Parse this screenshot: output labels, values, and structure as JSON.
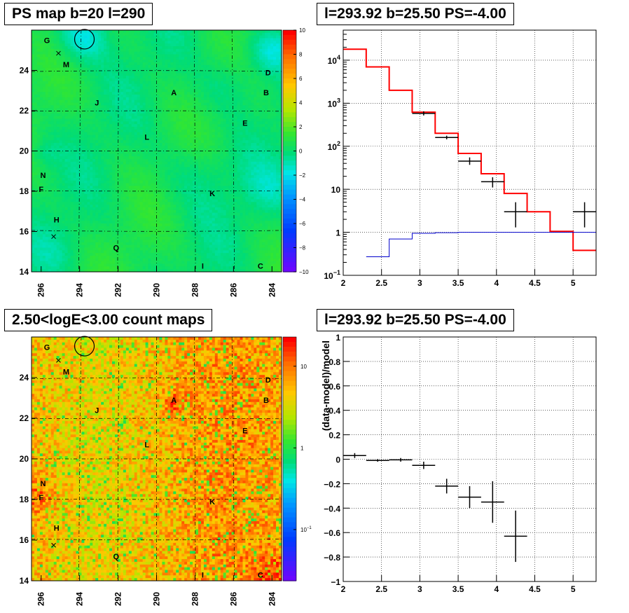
{
  "titles": {
    "map_top": "PS map b=20 l=290",
    "spec_top": "l=293.92 b=25.50 PS=-4.00",
    "map_bottom": "2.50<logE<3.00 count maps",
    "resid_bottom": "l=293.92 b=25.50 PS=-4.00"
  },
  "maps": {
    "x_ticks": [
      "296",
      "294",
      "292",
      "290",
      "288",
      "286",
      "284"
    ],
    "y_ticks": [
      "14",
      "16",
      "18",
      "20",
      "22",
      "24"
    ],
    "sources": [
      "G",
      "M",
      "J",
      "A",
      "D",
      "B",
      "E",
      "L",
      "N",
      "F",
      "K",
      "H",
      "Q",
      "I",
      "C"
    ],
    "ps_colorbar_ticks": [
      "10",
      "8",
      "6",
      "4",
      "2",
      "0",
      "-2",
      "-4",
      "-6",
      "-8",
      "-10"
    ],
    "count_colorbar_ticks": [
      "10",
      "1",
      "10^-1"
    ]
  },
  "chart_data": [
    {
      "type": "heatmap",
      "title": "PS map b=20 l=290",
      "xlim": [
        296.5,
        283.5
      ],
      "ylim": [
        14,
        26
      ],
      "zlim": [
        -10,
        10
      ],
      "colorbar": [
        "10",
        "8",
        "6",
        "4",
        "2",
        "0",
        "-2",
        "-4",
        "-6",
        "-8",
        "-10"
      ],
      "markers": [
        {
          "label": "G",
          "l": 295.7,
          "b": 25.5
        },
        {
          "label": "M",
          "l": 294.7,
          "b": 24.3
        },
        {
          "label": "J",
          "l": 293.1,
          "b": 22.4
        },
        {
          "label": "A",
          "l": 289.1,
          "b": 22.9
        },
        {
          "label": "D",
          "l": 284.2,
          "b": 23.9
        },
        {
          "label": "B",
          "l": 284.3,
          "b": 22.9
        },
        {
          "label": "E",
          "l": 285.4,
          "b": 21.4
        },
        {
          "label": "L",
          "l": 290.5,
          "b": 20.7
        },
        {
          "label": "N",
          "l": 295.9,
          "b": 18.8
        },
        {
          "label": "F",
          "l": 296.0,
          "b": 18.1
        },
        {
          "label": "K",
          "l": 287.1,
          "b": 17.9
        },
        {
          "label": "H",
          "l": 295.2,
          "b": 16.6
        },
        {
          "label": "Q",
          "l": 292.1,
          "b": 15.2
        },
        {
          "label": "I",
          "l": 287.6,
          "b": 14.3
        },
        {
          "label": "C",
          "l": 284.6,
          "b": 14.3
        }
      ]
    },
    {
      "type": "line",
      "title": "l=293.92 b=25.50 PS=-4.00",
      "xlabel": "",
      "ylabel": "",
      "xlim": [
        2,
        5.3
      ],
      "ylim": [
        0.1,
        50000
      ],
      "yscale": "log",
      "x_ticks": [
        "2",
        "2.5",
        "3",
        "3.5",
        "4",
        "4.5",
        "5"
      ],
      "y_ticks": [
        "10^-1",
        "1",
        "10",
        "10^2",
        "10^3",
        "10^4"
      ],
      "grid": true,
      "series": [
        {
          "color": "#ff0000",
          "steps": [
            [
              2.0,
              2.3,
              18000
            ],
            [
              2.3,
              2.6,
              7000
            ],
            [
              2.6,
              2.9,
              2000
            ],
            [
              2.9,
              3.2,
              620
            ],
            [
              3.2,
              3.5,
              200
            ],
            [
              3.5,
              3.8,
              68
            ],
            [
              3.8,
              4.1,
              23
            ],
            [
              4.1,
              4.4,
              8
            ],
            [
              4.4,
              4.7,
              3
            ],
            [
              4.7,
              5.0,
              1.05
            ],
            [
              5.0,
              5.3,
              0.38
            ]
          ]
        },
        {
          "color": "#0000cc",
          "steps": [
            [
              2.3,
              2.6,
              0.27
            ],
            [
              2.6,
              2.9,
              0.7
            ],
            [
              2.9,
              3.2,
              0.95
            ],
            [
              3.2,
              3.5,
              0.98
            ],
            [
              3.5,
              3.8,
              1.0
            ],
            [
              3.8,
              4.1,
              1.0
            ],
            [
              4.1,
              4.4,
              1.0
            ],
            [
              4.4,
              4.7,
              1.0
            ],
            [
              4.7,
              5.0,
              1.0
            ],
            [
              5.0,
              5.3,
              1.0
            ]
          ]
        },
        {
          "color": "#000000",
          "points": [
            {
              "x": 3.05,
              "y": 580,
              "xerr": 0.15,
              "ylo": 520,
              "yhi": 650
            },
            {
              "x": 3.35,
              "y": 160,
              "xerr": 0.15,
              "ylo": 145,
              "yhi": 176
            },
            {
              "x": 3.65,
              "y": 45,
              "xerr": 0.15,
              "ylo": 37,
              "yhi": 55
            },
            {
              "x": 3.95,
              "y": 15,
              "xerr": 0.15,
              "ylo": 11,
              "yhi": 19
            },
            {
              "x": 4.25,
              "y": 3,
              "xerr": 0.15,
              "ylo": 1.3,
              "yhi": 5
            },
            {
              "x": 5.15,
              "y": 3,
              "xerr": 0.15,
              "ylo": 1.3,
              "yhi": 5
            }
          ]
        }
      ]
    },
    {
      "type": "heatmap",
      "title": "2.50<logE<3.00 count maps",
      "xlim": [
        296.5,
        283.5
      ],
      "ylim": [
        14,
        26
      ],
      "zscale": "log",
      "colorbar": [
        "10",
        "1",
        "10^-1"
      ]
    },
    {
      "type": "scatter",
      "title": "l=293.92 b=25.50 PS=-4.00",
      "xlabel": "",
      "ylabel": "(data-model)/model",
      "xlim": [
        2,
        5.3
      ],
      "ylim": [
        -1,
        1
      ],
      "x_ticks": [
        "2",
        "2.5",
        "3",
        "3.5",
        "4",
        "4.5",
        "5"
      ],
      "y_ticks": [
        "1",
        "0.8",
        "0.6",
        "0.4",
        "0.2",
        "0",
        "-0.2",
        "-0.4",
        "-0.6",
        "-0.8",
        "-1"
      ],
      "grid": true,
      "points": [
        {
          "x": 2.15,
          "y": 0.03,
          "xerr": 0.15,
          "yerr": 0.02
        },
        {
          "x": 2.45,
          "y": -0.01,
          "xerr": 0.15,
          "yerr": 0.01
        },
        {
          "x": 2.75,
          "y": -0.005,
          "xerr": 0.15,
          "yerr": 0.015
        },
        {
          "x": 3.05,
          "y": -0.05,
          "xerr": 0.15,
          "yerr": 0.03
        },
        {
          "x": 3.35,
          "y": -0.22,
          "xerr": 0.15,
          "yerr": 0.06
        },
        {
          "x": 3.65,
          "y": -0.31,
          "xerr": 0.15,
          "yerr": 0.09
        },
        {
          "x": 3.95,
          "y": -0.35,
          "xerr": 0.15,
          "yerr": 0.17
        },
        {
          "x": 4.25,
          "y": -0.63,
          "xerr": 0.15,
          "yerr": 0.21
        }
      ]
    }
  ]
}
